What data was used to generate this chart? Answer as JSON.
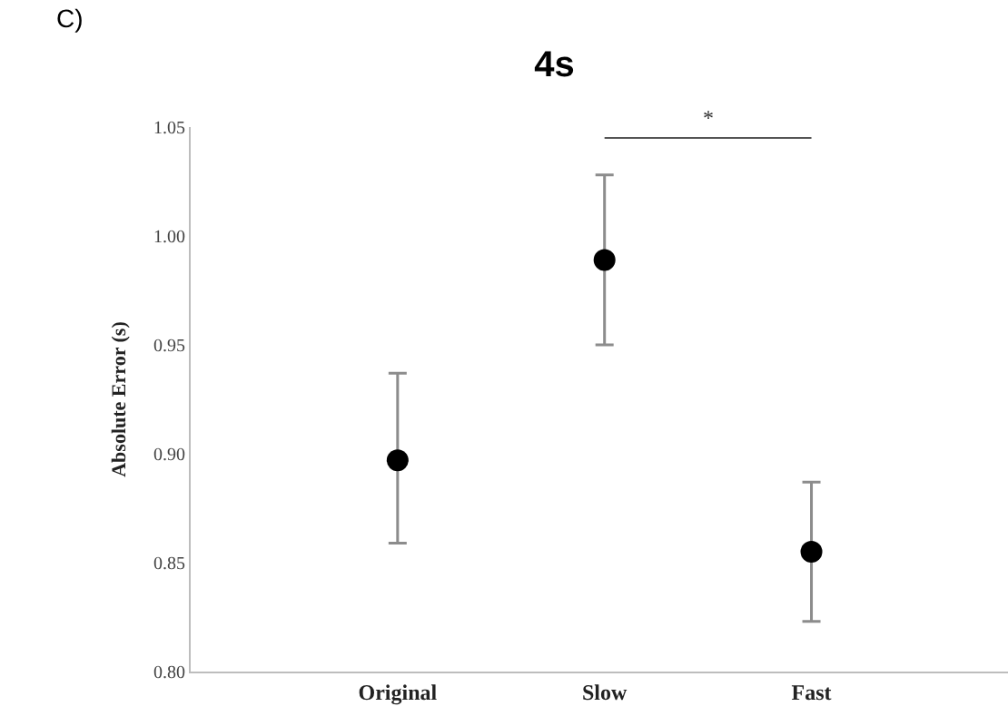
{
  "chart_data": {
    "type": "scatter",
    "title": "4s",
    "ylabel": "Absolute Error (s)",
    "categories": [
      "Original",
      "Slow",
      "Fast"
    ],
    "values": [
      0.897,
      0.989,
      0.855
    ],
    "errors": [
      [
        0.859,
        0.937
      ],
      [
        0.95,
        1.028
      ],
      [
        0.823,
        0.887
      ]
    ],
    "color": "#000000",
    "marker": "circle",
    "grid": false,
    "ylim": [
      0.8,
      1.05
    ],
    "yticks": [
      {
        "value": 0.8,
        "label": "0.80"
      },
      {
        "value": 0.85,
        "label": "0.85"
      },
      {
        "value": 0.9,
        "label": "0.90"
      },
      {
        "value": 0.95,
        "label": "0.95"
      },
      {
        "value": 1.0,
        "label": "1.00"
      },
      {
        "value": 1.05,
        "label": "1.05"
      }
    ],
    "annotations": [
      "C)",
      "*"
    ]
  }
}
